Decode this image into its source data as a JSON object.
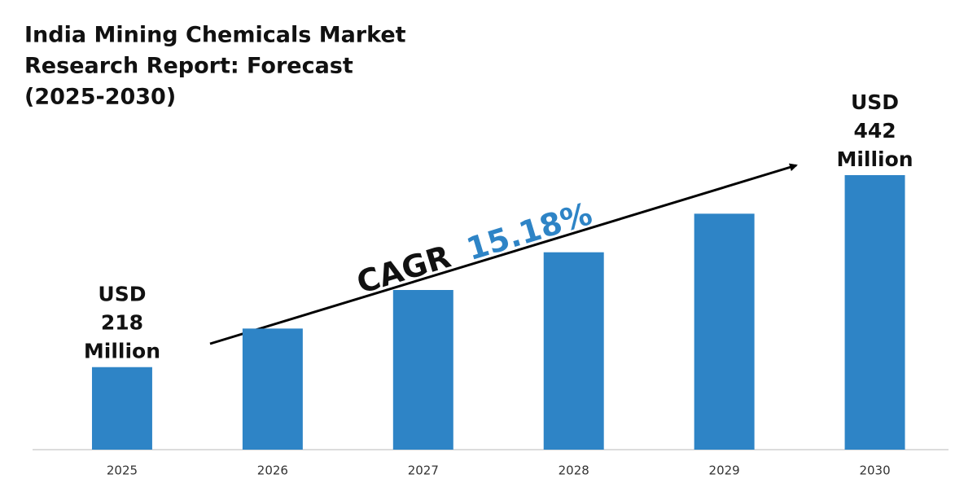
{
  "chart_data": {
    "type": "bar",
    "title": [
      "India Mining Chemicals Market",
      "Research Report: Forecast",
      "(2025-2030)"
    ],
    "categories": [
      "2025",
      "2026",
      "2027",
      "2028",
      "2029",
      "2030"
    ],
    "values": [
      218,
      263,
      308,
      352,
      397,
      442
    ],
    "value_labels": [
      [
        "USD",
        "218",
        "Million"
      ],
      null,
      null,
      null,
      null,
      [
        "USD",
        "442",
        "Million"
      ]
    ],
    "color": "#2e84c6",
    "ylim": [
      174,
      442
    ],
    "annotation": {
      "label": "CAGR",
      "value": "15.18%"
    }
  }
}
